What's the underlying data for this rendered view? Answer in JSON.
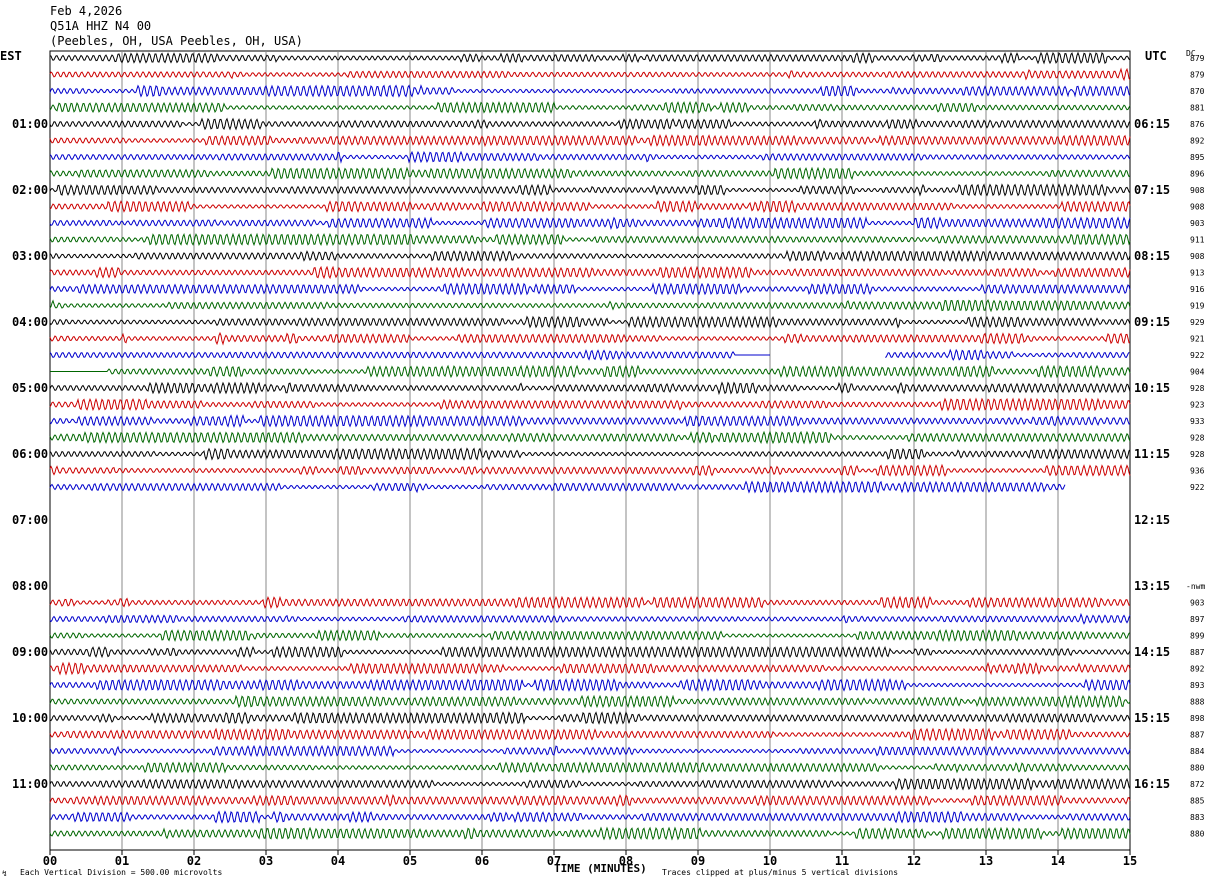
{
  "header": {
    "date": "Feb 4,2026",
    "station": "Q51A HHZ N4 00",
    "location": "(Peebles, OH, USA Peebles, OH, USA)"
  },
  "left_tz": "EST",
  "right_tz": "UTC",
  "dc_label": "DC",
  "footer": {
    "xlabel": "TIME (MINUTES)",
    "division_note": "Each Vertical Division =  500.00 microvolts",
    "clip_note": "Traces clipped at plus/minus 5 vertical divisions"
  },
  "colors": [
    "#000000",
    "#cc0000",
    "#0000cc",
    "#006600"
  ],
  "chart_data": {
    "type": "line",
    "title": "Q51A HHZ N4 00",
    "xlabel": "TIME (MINUTES)",
    "xlim": [
      0,
      15
    ],
    "x_ticks": [
      "00",
      "01",
      "02",
      "03",
      "04",
      "05",
      "06",
      "07",
      "08",
      "09",
      "10",
      "11",
      "12",
      "13",
      "14",
      "15"
    ],
    "left_hour_labels": [
      "01:00",
      "02:00",
      "03:00",
      "04:00",
      "05:00",
      "06:00",
      "07:00",
      "08:00",
      "09:00",
      "10:00",
      "11:00"
    ],
    "right_hour_labels": [
      "06:15",
      "07:15",
      "08:15",
      "09:15",
      "10:15",
      "11:15",
      "12:15",
      "13:15",
      "14:15",
      "15:15",
      "16:15"
    ],
    "row_count": 48,
    "rows_with_data": [
      {
        "row": 0,
        "dc": "879"
      },
      {
        "row": 1,
        "dc": "879"
      },
      {
        "row": 2,
        "dc": "870"
      },
      {
        "row": 3,
        "dc": "881"
      },
      {
        "row": 4,
        "dc": "876"
      },
      {
        "row": 5,
        "dc": "892"
      },
      {
        "row": 6,
        "dc": "895"
      },
      {
        "row": 7,
        "dc": "896"
      },
      {
        "row": 8,
        "dc": "908"
      },
      {
        "row": 9,
        "dc": "908"
      },
      {
        "row": 10,
        "dc": "903"
      },
      {
        "row": 11,
        "dc": "911"
      },
      {
        "row": 12,
        "dc": "908"
      },
      {
        "row": 13,
        "dc": "913"
      },
      {
        "row": 14,
        "dc": "916"
      },
      {
        "row": 15,
        "dc": "919"
      },
      {
        "row": 16,
        "dc": "929"
      },
      {
        "row": 17,
        "dc": "921"
      },
      {
        "row": 18,
        "dc": "922",
        "gap": [
          10.0,
          11.6
        ]
      },
      {
        "row": 19,
        "dc": "904",
        "flat_start": [
          0,
          0.8
        ]
      },
      {
        "row": 20,
        "dc": "928"
      },
      {
        "row": 21,
        "dc": "923"
      },
      {
        "row": 22,
        "dc": "933"
      },
      {
        "row": 23,
        "dc": "928"
      },
      {
        "row": 24,
        "dc": "928"
      },
      {
        "row": 25,
        "dc": "936"
      },
      {
        "row": 26,
        "dc": "922",
        "end": 14.1
      },
      {
        "row": 33,
        "dc": "903"
      },
      {
        "row": 34,
        "dc": "897"
      },
      {
        "row": 35,
        "dc": "899"
      },
      {
        "row": 36,
        "dc": "887"
      },
      {
        "row": 37,
        "dc": "892"
      },
      {
        "row": 38,
        "dc": "893"
      },
      {
        "row": 39,
        "dc": "888"
      },
      {
        "row": 40,
        "dc": "898"
      },
      {
        "row": 41,
        "dc": "887"
      },
      {
        "row": 42,
        "dc": "884"
      },
      {
        "row": 43,
        "dc": "880"
      },
      {
        "row": 44,
        "dc": "872"
      },
      {
        "row": 45,
        "dc": "885"
      },
      {
        "row": 46,
        "dc": "883"
      },
      {
        "row": 47,
        "dc": "880"
      }
    ],
    "nwm_label": "-nwm",
    "grid": true
  }
}
